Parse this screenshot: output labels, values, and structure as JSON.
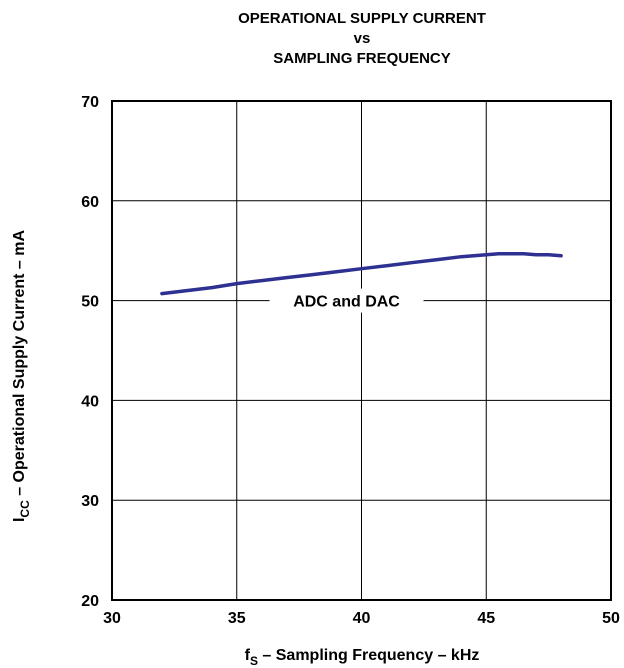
{
  "chart_data": {
    "type": "line",
    "title_lines": [
      "OPERATIONAL SUPPLY CURRENT",
      "vs",
      "SAMPLING FREQUENCY"
    ],
    "xlabel": {
      "main": "f",
      "sub": "S",
      "rest": " – Sampling Frequency – kHz"
    },
    "ylabel": {
      "main": "I",
      "sub": "CC",
      "rest": " – Operational Supply Current – mA"
    },
    "xlim": [
      30,
      50
    ],
    "ylim": [
      20,
      70
    ],
    "xticks": [
      30,
      35,
      40,
      45,
      50
    ],
    "yticks": [
      20,
      30,
      40,
      50,
      60,
      70
    ],
    "grid": true,
    "series": [
      {
        "name": "ADC and DAC",
        "color": "#2e3192",
        "x": [
          32,
          33,
          34,
          35,
          36,
          37,
          38,
          39,
          40,
          41,
          42,
          43,
          44,
          45,
          45.5,
          46,
          46.5,
          47,
          47.5,
          48
        ],
        "y": [
          50.7,
          51.0,
          51.3,
          51.7,
          52.0,
          52.3,
          52.6,
          52.9,
          53.2,
          53.5,
          53.8,
          54.1,
          54.4,
          54.6,
          54.7,
          54.7,
          54.7,
          54.6,
          54.6,
          54.5
        ]
      }
    ],
    "annotation": "ADC and DAC"
  }
}
